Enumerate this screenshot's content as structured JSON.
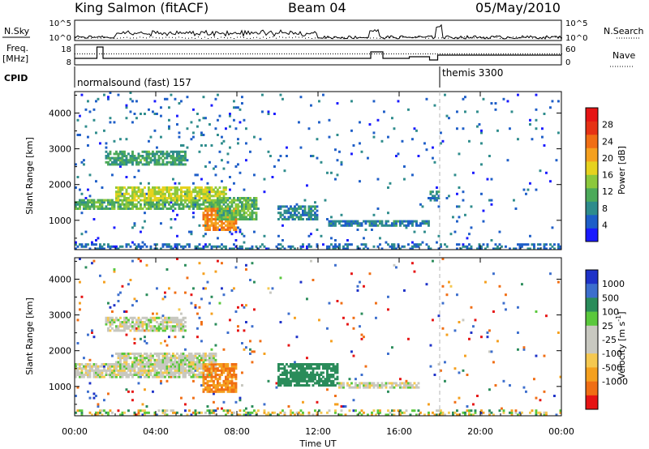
{
  "header": {
    "station": "King Salmon (fitACF)",
    "beam": "Beam 04",
    "date": "05/May/2010"
  },
  "status_panels": {
    "nsky_label": "N.Sky",
    "nsearch_label": "N.Search",
    "freq_label": "Freq.",
    "freq_unit": "[MHz]",
    "nave_label": "Nave",
    "cpid_label": "CPID",
    "nsky_ticks": [
      "10^5",
      "10^0"
    ],
    "nsearch_ticks": [
      "10^5",
      "10^0"
    ],
    "freq_ticks": [
      "18",
      "8"
    ],
    "nave_ticks": [
      "60",
      "0"
    ],
    "cpid_modes": [
      {
        "name": "normalsound (fast) 157",
        "start_hour": 0
      },
      {
        "name": "themis 3300",
        "start_hour": 18
      }
    ]
  },
  "chart_data": [
    {
      "type": "heatmap",
      "panel": "power",
      "xlabel": "Time UT",
      "ylabel": "Slant Range [km]",
      "xlim": [
        0,
        24
      ],
      "ylim": [
        180,
        4600
      ],
      "yticks": [
        "1000",
        "2000",
        "3000",
        "4000"
      ],
      "colorbar": {
        "label": "Power [dB]",
        "ticks": [
          "4",
          "8",
          "12",
          "16",
          "20",
          "24",
          "28"
        ],
        "range": [
          0,
          32
        ],
        "colors": [
          "#1a1aff",
          "#1e5ec8",
          "#2e8c8c",
          "#4caa5a",
          "#8cc83c",
          "#e6d21e",
          "#f5a01e",
          "#f06e14",
          "#e63214",
          "#e61414"
        ]
      },
      "regions": [
        {
          "t0": 0.0,
          "t1": 7.0,
          "r0": 1250,
          "r1": 1550,
          "level": 12
        },
        {
          "t0": 1.5,
          "t1": 5.5,
          "r0": 2500,
          "r1": 2900,
          "level": 10
        },
        {
          "t0": 2.0,
          "t1": 7.5,
          "r0": 1500,
          "r1": 1900,
          "level": 16
        },
        {
          "t0": 6.3,
          "t1": 8.0,
          "r0": 700,
          "r1": 1300,
          "level": 22
        },
        {
          "t0": 7.0,
          "t1": 9.0,
          "r0": 1000,
          "r1": 1600,
          "level": 12
        },
        {
          "t0": 10.0,
          "t1": 12.0,
          "r0": 1000,
          "r1": 1400,
          "level": 8
        },
        {
          "t0": 12.5,
          "t1": 17.5,
          "r0": 800,
          "r1": 1000,
          "level": 7
        },
        {
          "t0": 17.5,
          "t1": 18.0,
          "r0": 1500,
          "r1": 1800,
          "level": 8
        }
      ]
    },
    {
      "type": "heatmap",
      "panel": "velocity",
      "xlabel": "Time UT",
      "ylabel": "Slant Range [km]",
      "xlim": [
        0,
        24
      ],
      "ylim": [
        180,
        4600
      ],
      "xticks": [
        "00:00",
        "04:00",
        "08:00",
        "12:00",
        "16:00",
        "20:00",
        "00:00"
      ],
      "yticks": [
        "1000",
        "2000",
        "3000",
        "4000"
      ],
      "colorbar": {
        "label": "Velocity [m s",
        "superscript": "-1",
        "label_close": "]",
        "ticks": [
          "1000",
          "500",
          "100",
          "25",
          "-25",
          "-100",
          "-500",
          "-1000"
        ],
        "colors": [
          "#1e32c8",
          "#3c6ecd",
          "#2a8c5a",
          "#5ac83c",
          "#c8c8c0",
          "#c8c8c0",
          "#f5c850",
          "#f5a01e",
          "#f06e14",
          "#e61414"
        ]
      },
      "regions": [
        {
          "t0": 0.0,
          "t1": 7.0,
          "r0": 1200,
          "r1": 1600,
          "velocity": 0
        },
        {
          "t0": 2.0,
          "t1": 7.0,
          "r0": 1500,
          "r1": 1900,
          "velocity": 0
        },
        {
          "t0": 1.5,
          "t1": 5.5,
          "r0": 2500,
          "r1": 2900,
          "velocity": 0
        },
        {
          "t0": 6.3,
          "t1": 8.0,
          "r0": 800,
          "r1": 1600,
          "velocity": -300
        },
        {
          "t0": 10.0,
          "t1": 13.0,
          "r0": 1000,
          "r1": 1600,
          "velocity": 150
        },
        {
          "t0": 13.0,
          "t1": 17.0,
          "r0": 900,
          "r1": 1100,
          "velocity": 0
        }
      ]
    }
  ]
}
